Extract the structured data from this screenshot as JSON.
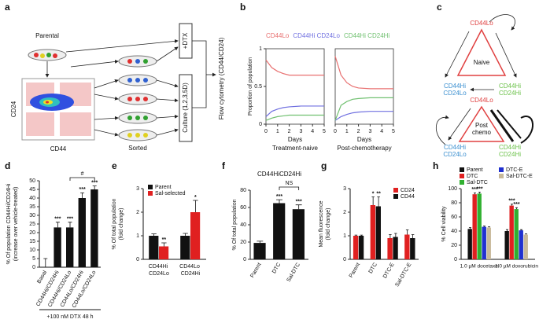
{
  "panels": [
    "a",
    "b",
    "c",
    "d",
    "e",
    "f",
    "g",
    "h"
  ],
  "diagram_a": {
    "parental": "Parental",
    "y_axis": "CD24",
    "x_axis": "CD44",
    "sorted": "Sorted",
    "treatment": "+DTX",
    "culture": "Culture (1,2,3,5D)",
    "readout": "Flow cytometry (CD44/CD24)"
  },
  "diagram_c": {
    "naive": {
      "top": "CD44Lo",
      "center": [
        "Naive"
      ],
      "left": [
        "CD44Hi",
        "CD24Lo"
      ],
      "right": [
        "CD44Hi",
        "CD24Hi"
      ]
    },
    "post": {
      "top": "CD44Lo",
      "center": [
        "Post",
        "chemo"
      ],
      "left": [
        "CD44Hi",
        "CD24Lo"
      ],
      "right": [
        "CD44Hi",
        "CD24Hi"
      ]
    }
  },
  "chart_data": [
    {
      "type": "line",
      "ylabel": "Proportion of population",
      "xlabel": "Days",
      "subtitle": "Treatment-naive",
      "x": [
        0,
        0.5,
        1,
        1.5,
        2,
        3,
        4,
        5
      ],
      "xlim": [
        0,
        5
      ],
      "xticks": [
        0,
        1,
        2,
        3,
        4,
        5
      ],
      "ylim": [
        0,
        1
      ],
      "yticks": [
        0,
        0.5,
        1
      ],
      "series": [
        {
          "name": "CD44Lo",
          "color": "#e87070",
          "values": [
            0.85,
            0.75,
            0.7,
            0.67,
            0.65,
            0.65,
            0.65,
            0.65
          ]
        },
        {
          "name": "CD44Hi CD24Lo",
          "color": "#7070e0",
          "values": [
            0.1,
            0.17,
            0.2,
            0.22,
            0.23,
            0.24,
            0.24,
            0.24
          ]
        },
        {
          "name": "CD44Hi CD24Hi",
          "color": "#70c070",
          "values": [
            0.05,
            0.08,
            0.1,
            0.11,
            0.12,
            0.12,
            0.12,
            0.12
          ]
        }
      ]
    },
    {
      "type": "line",
      "xlabel": "Days",
      "subtitle": "Post-chemotherapy",
      "x": [
        0,
        0.5,
        1,
        1.5,
        2,
        3,
        4,
        5
      ],
      "xlim": [
        0,
        5
      ],
      "xticks": [
        0,
        1,
        2,
        3,
        4,
        5
      ],
      "ylim": [
        0,
        1
      ],
      "series": [
        {
          "color": "#e87070",
          "values": [
            0.9,
            0.65,
            0.55,
            0.5,
            0.48,
            0.47,
            0.47,
            0.47
          ]
        },
        {
          "color": "#7070e0",
          "values": [
            0.05,
            0.1,
            0.13,
            0.15,
            0.16,
            0.17,
            0.17,
            0.17
          ]
        },
        {
          "color": "#70c070",
          "values": [
            0.05,
            0.25,
            0.3,
            0.33,
            0.34,
            0.35,
            0.35,
            0.35
          ]
        }
      ]
    },
    {
      "type": "bar",
      "ylabel": [
        "% Of population CD44Hi/CD24Hi",
        "(increase over vehicle-treated)"
      ],
      "categories": [
        "Basal",
        "CD44Hi/CD24Hi",
        "CD44Hi/CD24Lo",
        "CD44Lo/CD24Hi",
        "CD44Lo/CD24Lo"
      ],
      "series": [
        {
          "color": "#111111",
          "values": [
            0,
            23,
            23,
            40,
            45
          ],
          "errors": [
            5,
            3,
            3,
            3,
            2
          ],
          "stars": [
            null,
            "***",
            "***",
            "***",
            "***"
          ]
        }
      ],
      "ylim": [
        0,
        50
      ],
      "yticks": [
        0,
        5,
        10,
        15,
        20,
        25,
        30,
        35,
        40,
        45,
        50
      ],
      "note": "#",
      "footer": "+100 nM DTX 48 h"
    },
    {
      "type": "bar",
      "ylabel": [
        "% Of total population",
        "(fold change)"
      ],
      "categories": [
        "CD44Hi CD24Lo",
        "CD44Lo CD24Hi"
      ],
      "series": [
        {
          "name": "Parent",
          "color": "#111111",
          "values": [
            1,
            1
          ],
          "errors": [
            0.08,
            0.1
          ],
          "stars": [
            null,
            null
          ]
        },
        {
          "name": "Sal-selected",
          "color": "#e02020",
          "values": [
            0.55,
            2.0
          ],
          "errors": [
            0.15,
            0.5
          ],
          "stars": [
            "**",
            "*"
          ]
        }
      ],
      "ylim": [
        0,
        3
      ],
      "yticks": [
        0,
        1,
        2,
        3
      ]
    },
    {
      "type": "bar",
      "title": "CD44HiCD24Hi",
      "ylabel": "% Of total population",
      "categories": [
        "Parent",
        "DTC",
        "Sal-DTC"
      ],
      "series": [
        {
          "color": "#111111",
          "values": [
            19,
            65,
            58
          ],
          "errors": [
            2,
            4,
            5
          ],
          "stars": [
            null,
            "***",
            "***"
          ]
        }
      ],
      "ylim": [
        0,
        80
      ],
      "yticks": [
        0,
        20,
        40,
        60,
        80
      ],
      "note": "NS"
    },
    {
      "type": "bar",
      "ylabel": [
        "Mean fluorescence",
        "(fold change)"
      ],
      "categories": [
        "Parent",
        "DTC",
        "DTC-E",
        "Sal-DTC-E"
      ],
      "series": [
        {
          "name": "CD24",
          "color": "#e02020",
          "values": [
            1,
            2.3,
            0.9,
            1.05
          ],
          "errors": [
            0.03,
            0.35,
            0.15,
            0.2
          ],
          "stars": [
            null,
            "*",
            null,
            null
          ]
        },
        {
          "name": "CD44",
          "color": "#111111",
          "values": [
            1,
            2.25,
            0.95,
            0.9
          ],
          "errors": [
            0.03,
            0.4,
            0.15,
            0.15
          ],
          "stars": [
            null,
            "**",
            null,
            null
          ]
        }
      ],
      "ylim": [
        0,
        3
      ],
      "yticks": [
        0,
        1,
        2,
        3
      ]
    },
    {
      "type": "bar",
      "ylabel": "% Cell viability",
      "categories": [
        "1.0 µM docetaxel",
        "1.0 µM doxorubicin"
      ],
      "series": [
        {
          "name": "Parent",
          "color": "#111111",
          "values": [
            43,
            40
          ],
          "errors": [
            2,
            2
          ],
          "stars": [
            null,
            null
          ]
        },
        {
          "name": "DTC",
          "color": "#e02020",
          "values": [
            92,
            76
          ],
          "errors": [
            2,
            2
          ],
          "stars": [
            "***",
            "***"
          ]
        },
        {
          "name": "Sal-DTC",
          "color": "#30b030",
          "values": [
            93,
            71
          ],
          "errors": [
            2,
            2
          ],
          "stars": [
            "***",
            "***"
          ]
        },
        {
          "name": "DTC-E",
          "color": "#2030d0",
          "values": [
            46,
            41
          ],
          "errors": [
            1,
            1
          ],
          "stars": [
            null,
            null
          ]
        },
        {
          "name": "Sal-DTC-E",
          "color": "#c8b99a",
          "values": [
            45,
            35
          ],
          "errors": [
            1,
            1
          ],
          "stars": [
            null,
            null
          ]
        }
      ],
      "ylim": [
        0,
        100
      ],
      "yticks": [
        0,
        20,
        40,
        60,
        80,
        100
      ]
    }
  ]
}
